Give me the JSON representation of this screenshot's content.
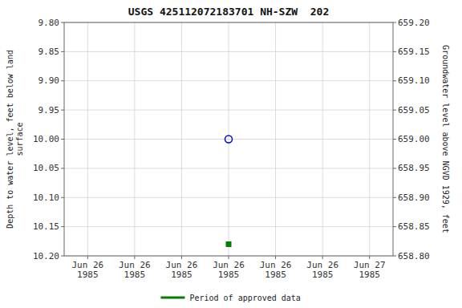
{
  "chart_data": {
    "type": "scatter",
    "title": "USGS 425112072183701 NH-SZW  202",
    "y_label": "Depth to water level, feet below land\nsurface",
    "y2_label": "Groundwater level above NGVD 1929, feet",
    "categories": [
      "Jun 26\n1985",
      "Jun 26\n1985",
      "Jun 26\n1985",
      "Jun 26\n1985",
      "Jun 26\n1985",
      "Jun 26\n1985",
      "Jun 27\n1985"
    ],
    "series": [
      {
        "color": "#0000cc",
        "marker": "open-circle",
        "values": [
          null,
          null,
          null,
          10.0,
          null,
          null,
          null
        ]
      },
      {
        "color": "#008000",
        "marker": "square",
        "values": [
          null,
          null,
          null,
          10.18,
          null,
          null,
          null
        ]
      }
    ],
    "ylim": [
      10.2,
      9.8
    ],
    "yticks": [
      {
        "value": 9.8,
        "label": "9.80"
      },
      9.85,
      {
        "value": 9.9,
        "label": "9.90"
      },
      9.95,
      {
        "value": 10.0,
        "label": "10.00"
      },
      10.05,
      {
        "value": 10.1,
        "label": "10.10"
      },
      10.15,
      {
        "value": 10.2,
        "label": "10.20"
      }
    ],
    "y2lim": [
      658.8,
      659.2
    ],
    "y2ticks": [
      {
        "value": 659.2,
        "label": "659.20"
      },
      659.15,
      {
        "value": 659.1,
        "label": "659.10"
      },
      659.05,
      {
        "value": 659.0,
        "label": "659.00"
      },
      658.95,
      {
        "value": 658.9,
        "label": "658.90"
      },
      658.85,
      {
        "value": 658.8,
        "label": "658.80"
      }
    ],
    "grid": true,
    "legend": "bottom",
    "legend_entries": [
      {
        "name": "Period of approved data",
        "color": "#008000"
      }
    ]
  }
}
